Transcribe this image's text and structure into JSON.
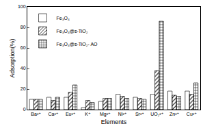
{
  "chart_data": {
    "type": "bar",
    "x_label": "Elements",
    "y_label": "Adsorption(%)",
    "categories": [
      "Ba²⁺",
      "Ca²⁺",
      "Eu²⁺",
      "K⁺",
      "Mg²⁺",
      "Ni²⁺",
      "Sr²⁺",
      "UO₂²⁺",
      "Zn²⁺",
      "Cu²⁺"
    ],
    "series": [
      {
        "name": "Fe₃O₄",
        "color": "#ffffff",
        "values": [
          10,
          12,
          12,
          2,
          8,
          15,
          12,
          15,
          18,
          18
        ]
      },
      {
        "name": "Fe₃O₄@s-TiO₂",
        "color": "#ffffff",
        "values": [
          10,
          9,
          17,
          9,
          11,
          13,
          11,
          38,
          14,
          15
        ]
      },
      {
        "name": "Fe₃O₄@s-TiO₂- AO",
        "color": "#c8c8c8",
        "values": [
          10,
          12,
          24,
          7,
          11,
          11,
          10,
          86,
          13,
          26
        ]
      }
    ],
    "ylim": [
      0,
      100
    ],
    "yticks": [
      0,
      20,
      40,
      60,
      80,
      100
    ],
    "grid": false,
    "legend": "upper left"
  }
}
